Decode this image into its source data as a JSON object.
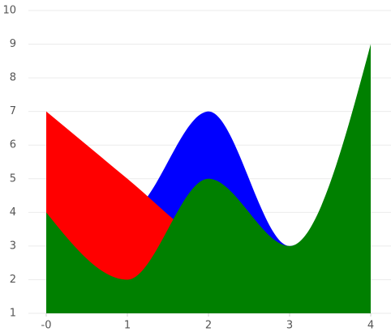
{
  "chart_data": {
    "type": "area",
    "x": [
      0,
      1,
      2,
      3,
      4
    ],
    "series": [
      {
        "color": "#0000ff",
        "values": [
          6,
          4,
          7,
          3,
          8
        ]
      },
      {
        "color": "#ff0000",
        "values": [
          7,
          5,
          3,
          2,
          1
        ]
      },
      {
        "color": "#008000",
        "values": [
          4,
          2,
          5,
          3,
          9
        ]
      }
    ],
    "xlim": [
      0,
      4
    ],
    "xticks": [
      {
        "value": 0,
        "label": "-0"
      },
      1,
      2,
      3,
      4
    ],
    "ylim": [
      1,
      10
    ],
    "yticks": [
      1,
      2,
      3,
      4,
      5,
      6,
      7,
      8,
      9,
      10
    ],
    "grid": true
  }
}
